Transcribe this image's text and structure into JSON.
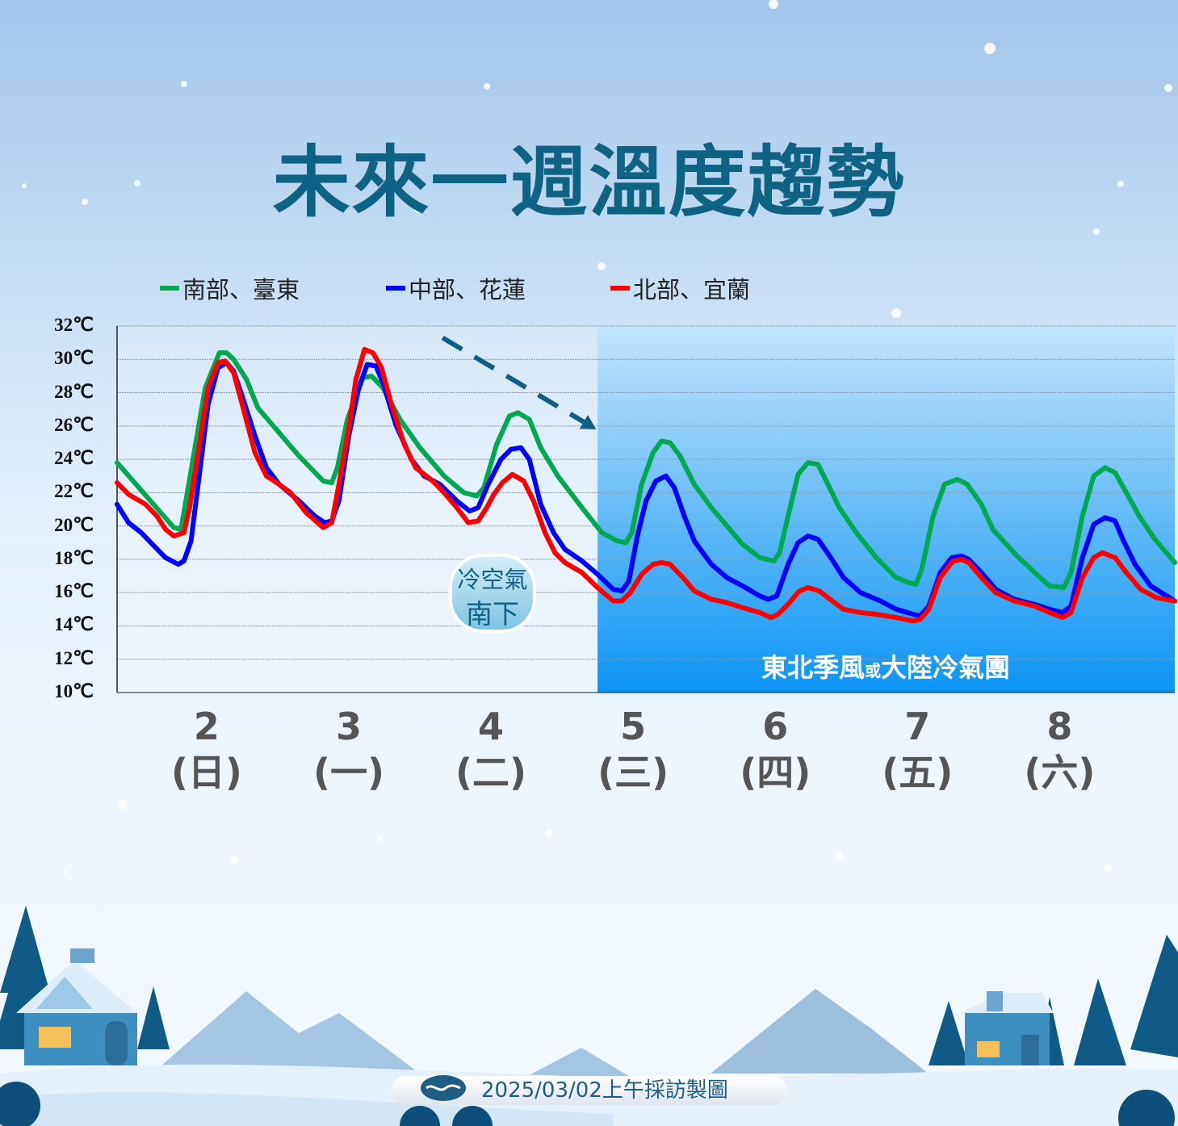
{
  "title": "未來一週溫度趨勢",
  "footer": "2025/03/02上午採訪製圖",
  "annotations": {
    "cold_air": [
      "冷空氣",
      "南下"
    ],
    "region_label_a": "東北季風",
    "region_label_small": "或",
    "region_label_b": "大陸冷氣團"
  },
  "chart_data": {
    "type": "line",
    "title": "未來一週溫度趨勢",
    "xlabel": "",
    "ylabel": "",
    "ylim": [
      10,
      32
    ],
    "xlim": [
      1.87,
      9.31
    ],
    "grid": true,
    "legend_position": "top",
    "y_ticks": [
      "10℃",
      "12℃",
      "14℃",
      "16℃",
      "18℃",
      "20℃",
      "22℃",
      "24℃",
      "26℃",
      "28℃",
      "30℃",
      "32℃"
    ],
    "y_tick_values": [
      10,
      12,
      14,
      16,
      18,
      20,
      22,
      24,
      26,
      28,
      30,
      32
    ],
    "x_ticks": [
      {
        "day": "2",
        "weekday": "(日)"
      },
      {
        "day": "3",
        "weekday": "(一)"
      },
      {
        "day": "4",
        "weekday": "(二)"
      },
      {
        "day": "5",
        "weekday": "(三)"
      },
      {
        "day": "6",
        "weekday": "(四)"
      },
      {
        "day": "7",
        "weekday": "(五)"
      },
      {
        "day": "8",
        "weekday": "(六)"
      }
    ],
    "shaded_region_start_day": 5.25,
    "shaded_region_label": "東北季風或大陸冷氣團",
    "trend_arrow": {
      "from": [
        4.16,
        31.3
      ],
      "to": [
        5.24,
        25.8
      ],
      "style": "dashed",
      "color": "#0e5f86"
    },
    "series": [
      {
        "name": "南部、臺東",
        "color": "#00a94f",
        "x": [
          1.87,
          2.27,
          2.32,
          2.49,
          2.59,
          2.64,
          2.69,
          2.78,
          2.86,
          2.98,
          3.15,
          3.32,
          3.38,
          3.42,
          3.49,
          3.6,
          3.66,
          3.74,
          3.86,
          4.0,
          4.17,
          4.31,
          4.4,
          4.45,
          4.54,
          4.63,
          4.69,
          4.77,
          4.85,
          4.97,
          5.14,
          5.28,
          5.39,
          5.45,
          5.49,
          5.56,
          5.64,
          5.7,
          5.76,
          5.83,
          5.93,
          6.05,
          6.16,
          6.27,
          6.39,
          6.49,
          6.53,
          6.59,
          6.66,
          6.73,
          6.8,
          6.87,
          6.95,
          7.07,
          7.21,
          7.35,
          7.44,
          7.49,
          7.53,
          7.61,
          7.69,
          7.78,
          7.85,
          7.95,
          8.03,
          8.2,
          8.35,
          8.43,
          8.53,
          8.58,
          8.66,
          8.74,
          8.82,
          8.89,
          8.97,
          9.06,
          9.17,
          9.31
        ],
        "y": [
          23.8,
          19.9,
          19.8,
          28.3,
          30.4,
          30.4,
          30.0,
          28.8,
          27.1,
          25.9,
          24.2,
          22.7,
          22.6,
          23.5,
          26.4,
          28.9,
          29.0,
          28.3,
          26.4,
          24.7,
          23.0,
          22.0,
          21.8,
          22.3,
          24.9,
          26.6,
          26.8,
          26.4,
          24.7,
          23.0,
          21.1,
          19.6,
          19.1,
          19.0,
          19.6,
          22.5,
          24.4,
          25.1,
          25.0,
          24.2,
          22.5,
          21.1,
          20.0,
          18.9,
          18.1,
          17.9,
          18.4,
          20.6,
          23.1,
          23.8,
          23.7,
          22.5,
          21.1,
          19.6,
          18.1,
          16.9,
          16.6,
          16.5,
          17.4,
          20.6,
          22.5,
          22.8,
          22.5,
          21.3,
          19.8,
          18.2,
          17.0,
          16.4,
          16.3,
          17.2,
          20.6,
          23.0,
          23.5,
          23.2,
          22.0,
          20.6,
          19.2,
          17.8
        ]
      },
      {
        "name": "中部、花蓮",
        "color": "#0000ff",
        "x": [
          1.87,
          1.95,
          2.04,
          2.13,
          2.21,
          2.3,
          2.34,
          2.39,
          2.44,
          2.51,
          2.58,
          2.64,
          2.69,
          2.75,
          2.84,
          2.92,
          3.01,
          3.15,
          3.26,
          3.33,
          3.38,
          3.43,
          3.5,
          3.57,
          3.63,
          3.69,
          3.74,
          3.83,
          3.94,
          4.03,
          4.14,
          4.26,
          4.35,
          4.41,
          4.48,
          4.57,
          4.64,
          4.71,
          4.77,
          4.85,
          4.94,
          5.02,
          5.14,
          5.25,
          5.36,
          5.42,
          5.47,
          5.53,
          5.59,
          5.66,
          5.73,
          5.79,
          5.86,
          5.93,
          6.05,
          6.16,
          6.27,
          6.39,
          6.45,
          6.51,
          6.59,
          6.66,
          6.73,
          6.8,
          6.89,
          6.98,
          7.1,
          7.24,
          7.35,
          7.47,
          7.52,
          7.58,
          7.66,
          7.74,
          7.81,
          7.86,
          7.95,
          8.05,
          8.18,
          8.32,
          8.43,
          8.52,
          8.58,
          8.66,
          8.74,
          8.82,
          8.89,
          8.95,
          9.03,
          9.14,
          9.31
        ],
        "y": [
          21.3,
          20.2,
          19.6,
          18.8,
          18.1,
          17.7,
          17.9,
          19.1,
          22.5,
          27.3,
          29.5,
          29.8,
          29.3,
          27.8,
          25.4,
          23.5,
          22.5,
          21.5,
          20.6,
          20.2,
          20.3,
          21.5,
          25.4,
          28.3,
          29.7,
          29.6,
          28.6,
          26.1,
          24.0,
          23.0,
          22.5,
          21.5,
          20.9,
          21.1,
          22.5,
          24.0,
          24.6,
          24.7,
          24.0,
          21.3,
          19.6,
          18.6,
          17.9,
          17.1,
          16.2,
          16.1,
          16.7,
          19.4,
          21.5,
          22.7,
          23.0,
          22.3,
          20.6,
          19.1,
          17.7,
          16.9,
          16.4,
          15.8,
          15.6,
          15.8,
          17.7,
          19.0,
          19.4,
          19.2,
          18.1,
          16.9,
          16.0,
          15.5,
          15.0,
          14.7,
          14.6,
          15.2,
          17.2,
          18.1,
          18.2,
          18.0,
          17.2,
          16.2,
          15.6,
          15.3,
          15.0,
          14.8,
          15.2,
          18.1,
          20.1,
          20.5,
          20.3,
          19.1,
          17.7,
          16.4,
          15.5
        ]
      },
      {
        "name": "北部、宜蘭",
        "color": "#ff0000",
        "x": [
          1.87,
          1.95,
          2.07,
          2.15,
          2.21,
          2.27,
          2.34,
          2.38,
          2.44,
          2.51,
          2.58,
          2.63,
          2.69,
          2.75,
          2.84,
          2.92,
          3.01,
          3.09,
          3.2,
          3.32,
          3.38,
          3.43,
          3.5,
          3.55,
          3.61,
          3.67,
          3.73,
          3.8,
          3.89,
          3.97,
          4.09,
          4.17,
          4.26,
          4.34,
          4.41,
          4.47,
          4.52,
          4.58,
          4.65,
          4.73,
          4.8,
          4.88,
          4.95,
          5.02,
          5.14,
          5.25,
          5.36,
          5.42,
          5.48,
          5.56,
          5.64,
          5.7,
          5.76,
          5.85,
          5.93,
          6.05,
          6.16,
          6.27,
          6.39,
          6.47,
          6.52,
          6.59,
          6.67,
          6.73,
          6.81,
          6.9,
          6.98,
          7.1,
          7.21,
          7.35,
          7.47,
          7.52,
          7.58,
          7.66,
          7.75,
          7.81,
          7.86,
          7.95,
          8.05,
          8.18,
          8.32,
          8.43,
          8.52,
          8.58,
          8.66,
          8.74,
          8.8,
          8.89,
          8.97,
          9.07,
          9.18,
          9.31
        ],
        "y": [
          22.6,
          21.9,
          21.3,
          20.6,
          19.8,
          19.4,
          19.6,
          21.1,
          24.4,
          28.3,
          29.8,
          29.9,
          29.2,
          27.3,
          24.4,
          23.0,
          22.5,
          22.0,
          20.8,
          19.9,
          20.2,
          22.5,
          25.9,
          28.8,
          30.6,
          30.4,
          29.5,
          27.3,
          24.9,
          23.5,
          22.7,
          22.0,
          21.1,
          20.2,
          20.3,
          21.1,
          21.9,
          22.6,
          23.1,
          22.7,
          21.5,
          19.6,
          18.4,
          17.8,
          17.2,
          16.3,
          15.5,
          15.5,
          16.0,
          17.1,
          17.7,
          17.8,
          17.7,
          16.9,
          16.1,
          15.6,
          15.4,
          15.1,
          14.8,
          14.5,
          14.7,
          15.3,
          16.1,
          16.3,
          16.1,
          15.5,
          15.0,
          14.8,
          14.7,
          14.5,
          14.3,
          14.4,
          15.0,
          16.9,
          17.9,
          18.0,
          17.8,
          16.9,
          16.0,
          15.5,
          15.2,
          14.8,
          14.5,
          14.8,
          16.9,
          18.1,
          18.4,
          18.1,
          17.2,
          16.2,
          15.7,
          15.5
        ]
      }
    ]
  },
  "colors": {
    "title": "#0e6385",
    "shaded_top": "#c3e5fb",
    "shaded_bottom": "#0b94f4"
  }
}
